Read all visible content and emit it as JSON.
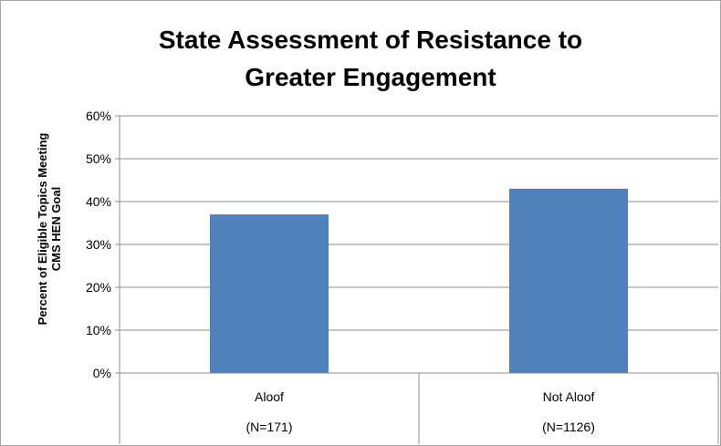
{
  "chart_data": {
    "type": "bar",
    "title_lines": [
      "State Assessment of Resistance to",
      "Greater Engagement"
    ],
    "ylabel_lines": [
      "Percent of Eligible Topics Meeting",
      "CMS HEN Goal"
    ],
    "xlabel": "",
    "categories": [
      "Aloof",
      "Not Aloof"
    ],
    "category_sublabels": [
      "(N=171)",
      "(N=1126)"
    ],
    "values": [
      0.37,
      0.43
    ],
    "ylim": [
      0,
      0.6
    ],
    "yticks": [
      {
        "value": 0,
        "label": "0%"
      },
      {
        "value": 0.1,
        "label": "10%"
      },
      {
        "value": 0.2,
        "label": "20%"
      },
      {
        "value": 0.3,
        "label": "30%"
      },
      {
        "value": 0.4,
        "label": "40%"
      },
      {
        "value": 0.5,
        "label": "50%"
      },
      {
        "value": 0.6,
        "label": "60%"
      }
    ],
    "grid": true,
    "legend": "none",
    "bar_color": "#4f81bd",
    "grid_color": "#8c8c8c"
  }
}
